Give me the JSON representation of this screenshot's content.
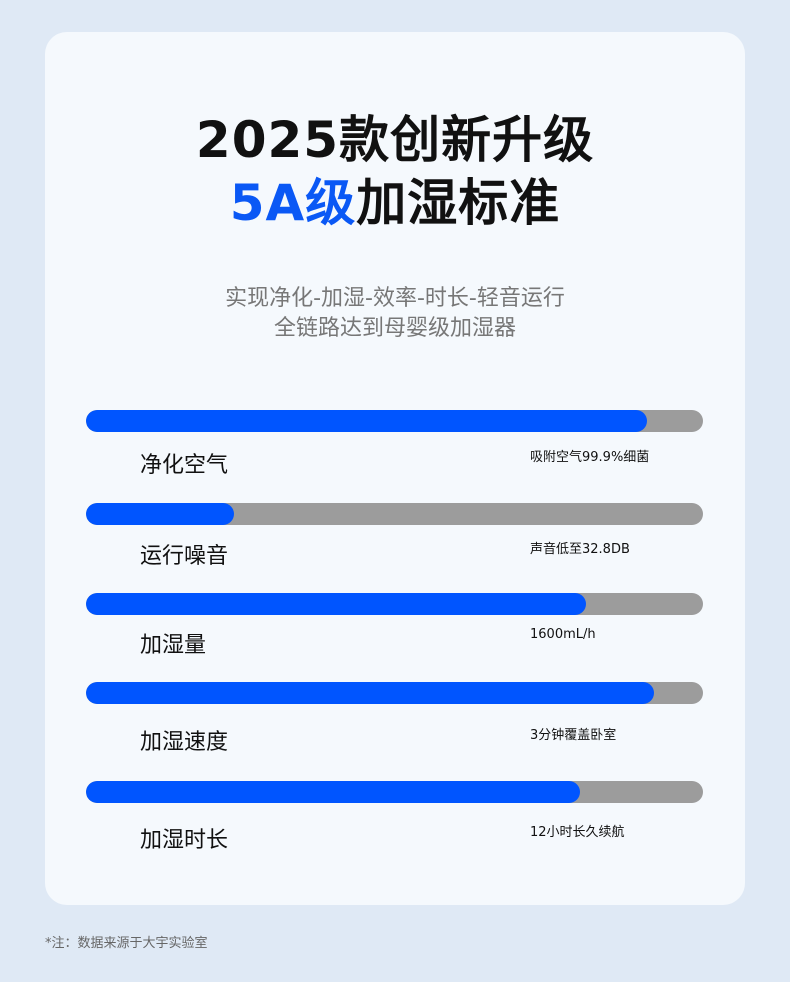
{
  "title_line1": "2025款创新升级",
  "title_line2_highlight": "5A级",
  "title_line2_rest": "加湿标准",
  "subtitle_line1": "实现净化-加湿-效率-时长-轻音运行",
  "subtitle_line2": "全链路达到母婴级加湿器",
  "colors": {
    "accent": "#0055ff",
    "track": "#9c9c9c"
  },
  "metrics": [
    {
      "label": "净化空气",
      "detail": "吸附空气99.9%细菌",
      "level_percent": 91
    },
    {
      "label": "运行噪音",
      "detail": "声音低至32.8DB",
      "level_percent": 24
    },
    {
      "label": "加湿量",
      "detail": "1600mL/h",
      "level_percent": 81
    },
    {
      "label": "加湿速度",
      "detail": "3分钟覆盖卧室",
      "level_percent": 92
    },
    {
      "label": "加湿时长",
      "detail": "12小时长久续航",
      "level_percent": 80
    }
  ],
  "footnote": "*注：数据来源于大宇实验室"
}
